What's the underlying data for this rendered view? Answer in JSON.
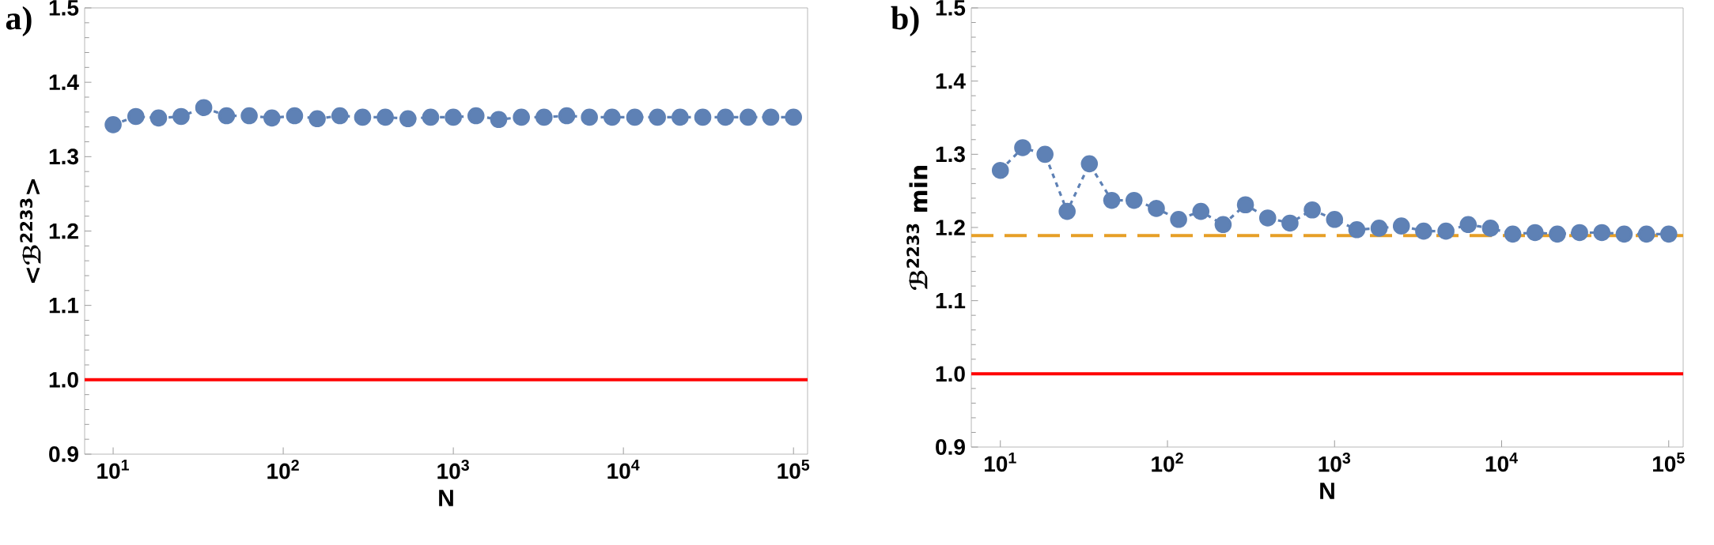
{
  "chart_data": [
    {
      "type": "line",
      "title": "a)",
      "xlabel": "N",
      "ylabel": "<ℬ$^{2233}$>",
      "log": "x",
      "marker": "circle",
      "line_style": "dashed",
      "x": [
        10,
        13.6,
        18.5,
        25.1,
        34.1,
        46.4,
        63.1,
        85.8,
        116.6,
        158.5,
        215.4,
        292.9,
        398.1,
        541.2,
        735.6,
        1000,
        1359,
        1848,
        2512,
        3415,
        4642,
        6310,
        8577,
        11659,
        15849,
        21544,
        29286,
        39811,
        54117,
        73564,
        100000
      ],
      "series": [
        {
          "color": "#5e81b5",
          "values": [
            1.343,
            1.354,
            1.352,
            1.354,
            1.366,
            1.355,
            1.355,
            1.352,
            1.355,
            1.351,
            1.355,
            1.353,
            1.353,
            1.351,
            1.353,
            1.353,
            1.355,
            1.35,
            1.353,
            1.353,
            1.355,
            1.353,
            1.353,
            1.353,
            1.353,
            1.353,
            1.353,
            1.353,
            1.353,
            1.353,
            1.353
          ]
        }
      ],
      "xlim": [
        6.8,
        121000
      ],
      "ylim": [
        0.9,
        1.5
      ],
      "xticks": [
        {
          "value": 10,
          "label": "10$^{1}$"
        },
        {
          "value": 100,
          "label": "10$^{2}$"
        },
        {
          "value": 1000,
          "label": "10$^{3}$"
        },
        {
          "value": 10000,
          "label": "10$^{4}$"
        },
        {
          "value": 100000,
          "label": "10$^{5}$"
        }
      ],
      "yticks": [
        {
          "value": 0.9,
          "label": "0.9"
        },
        {
          "value": 1.0,
          "label": "1.0"
        },
        {
          "value": 1.1,
          "label": "1.1"
        },
        {
          "value": 1.2,
          "label": "1.2"
        },
        {
          "value": 1.3,
          "label": "1.3"
        },
        {
          "value": 1.4,
          "label": "1.4"
        },
        {
          "value": 1.5,
          "label": "1.5"
        }
      ],
      "ref_lines": [
        {
          "axis": "y",
          "value": 1.0,
          "color": "#ff0000",
          "line_style": "solid"
        }
      ]
    },
    {
      "type": "line",
      "title": "b)",
      "xlabel": "N",
      "ylabel": "ℬ$^{2233}$ min",
      "log": "x",
      "marker": "circle",
      "line_style": "dashed",
      "x": [
        10,
        13.6,
        18.5,
        25.1,
        34.1,
        46.4,
        63.1,
        85.8,
        116.6,
        158.5,
        215.4,
        292.9,
        398.1,
        541.2,
        735.6,
        1000,
        1359,
        1848,
        2512,
        3415,
        4642,
        6310,
        8577,
        11659,
        15849,
        21544,
        29286,
        39811,
        54117,
        73564,
        100000
      ],
      "series": [
        {
          "color": "#5e81b5",
          "values": [
            1.278,
            1.309,
            1.3,
            1.222,
            1.287,
            1.237,
            1.237,
            1.226,
            1.211,
            1.222,
            1.204,
            1.231,
            1.213,
            1.206,
            1.224,
            1.211,
            1.197,
            1.199,
            1.202,
            1.195,
            1.195,
            1.204,
            1.199,
            1.191,
            1.193,
            1.191,
            1.193,
            1.193,
            1.191,
            1.191,
            1.191
          ]
        }
      ],
      "xlim": [
        6.7,
        122000
      ],
      "ylim": [
        0.9,
        1.5
      ],
      "xticks": [
        {
          "value": 10,
          "label": "10$^{1}$"
        },
        {
          "value": 100,
          "label": "10$^{2}$"
        },
        {
          "value": 1000,
          "label": "10$^{3}$"
        },
        {
          "value": 10000,
          "label": "10$^{4}$"
        },
        {
          "value": 100000,
          "label": "10$^{5}$"
        }
      ],
      "yticks": [
        {
          "value": 0.9,
          "label": "0.9"
        },
        {
          "value": 1.0,
          "label": "1.0"
        },
        {
          "value": 1.1,
          "label": "1.1"
        },
        {
          "value": 1.2,
          "label": "1.2"
        },
        {
          "value": 1.3,
          "label": "1.3"
        },
        {
          "value": 1.4,
          "label": "1.4"
        },
        {
          "value": 1.5,
          "label": "1.5"
        }
      ],
      "ref_lines": [
        {
          "axis": "y",
          "value": 1.0,
          "color": "#ff0000",
          "line_style": "solid"
        },
        {
          "axis": "y",
          "value": 1.189,
          "color": "#e69f26",
          "line_style": "dashed"
        }
      ]
    }
  ]
}
